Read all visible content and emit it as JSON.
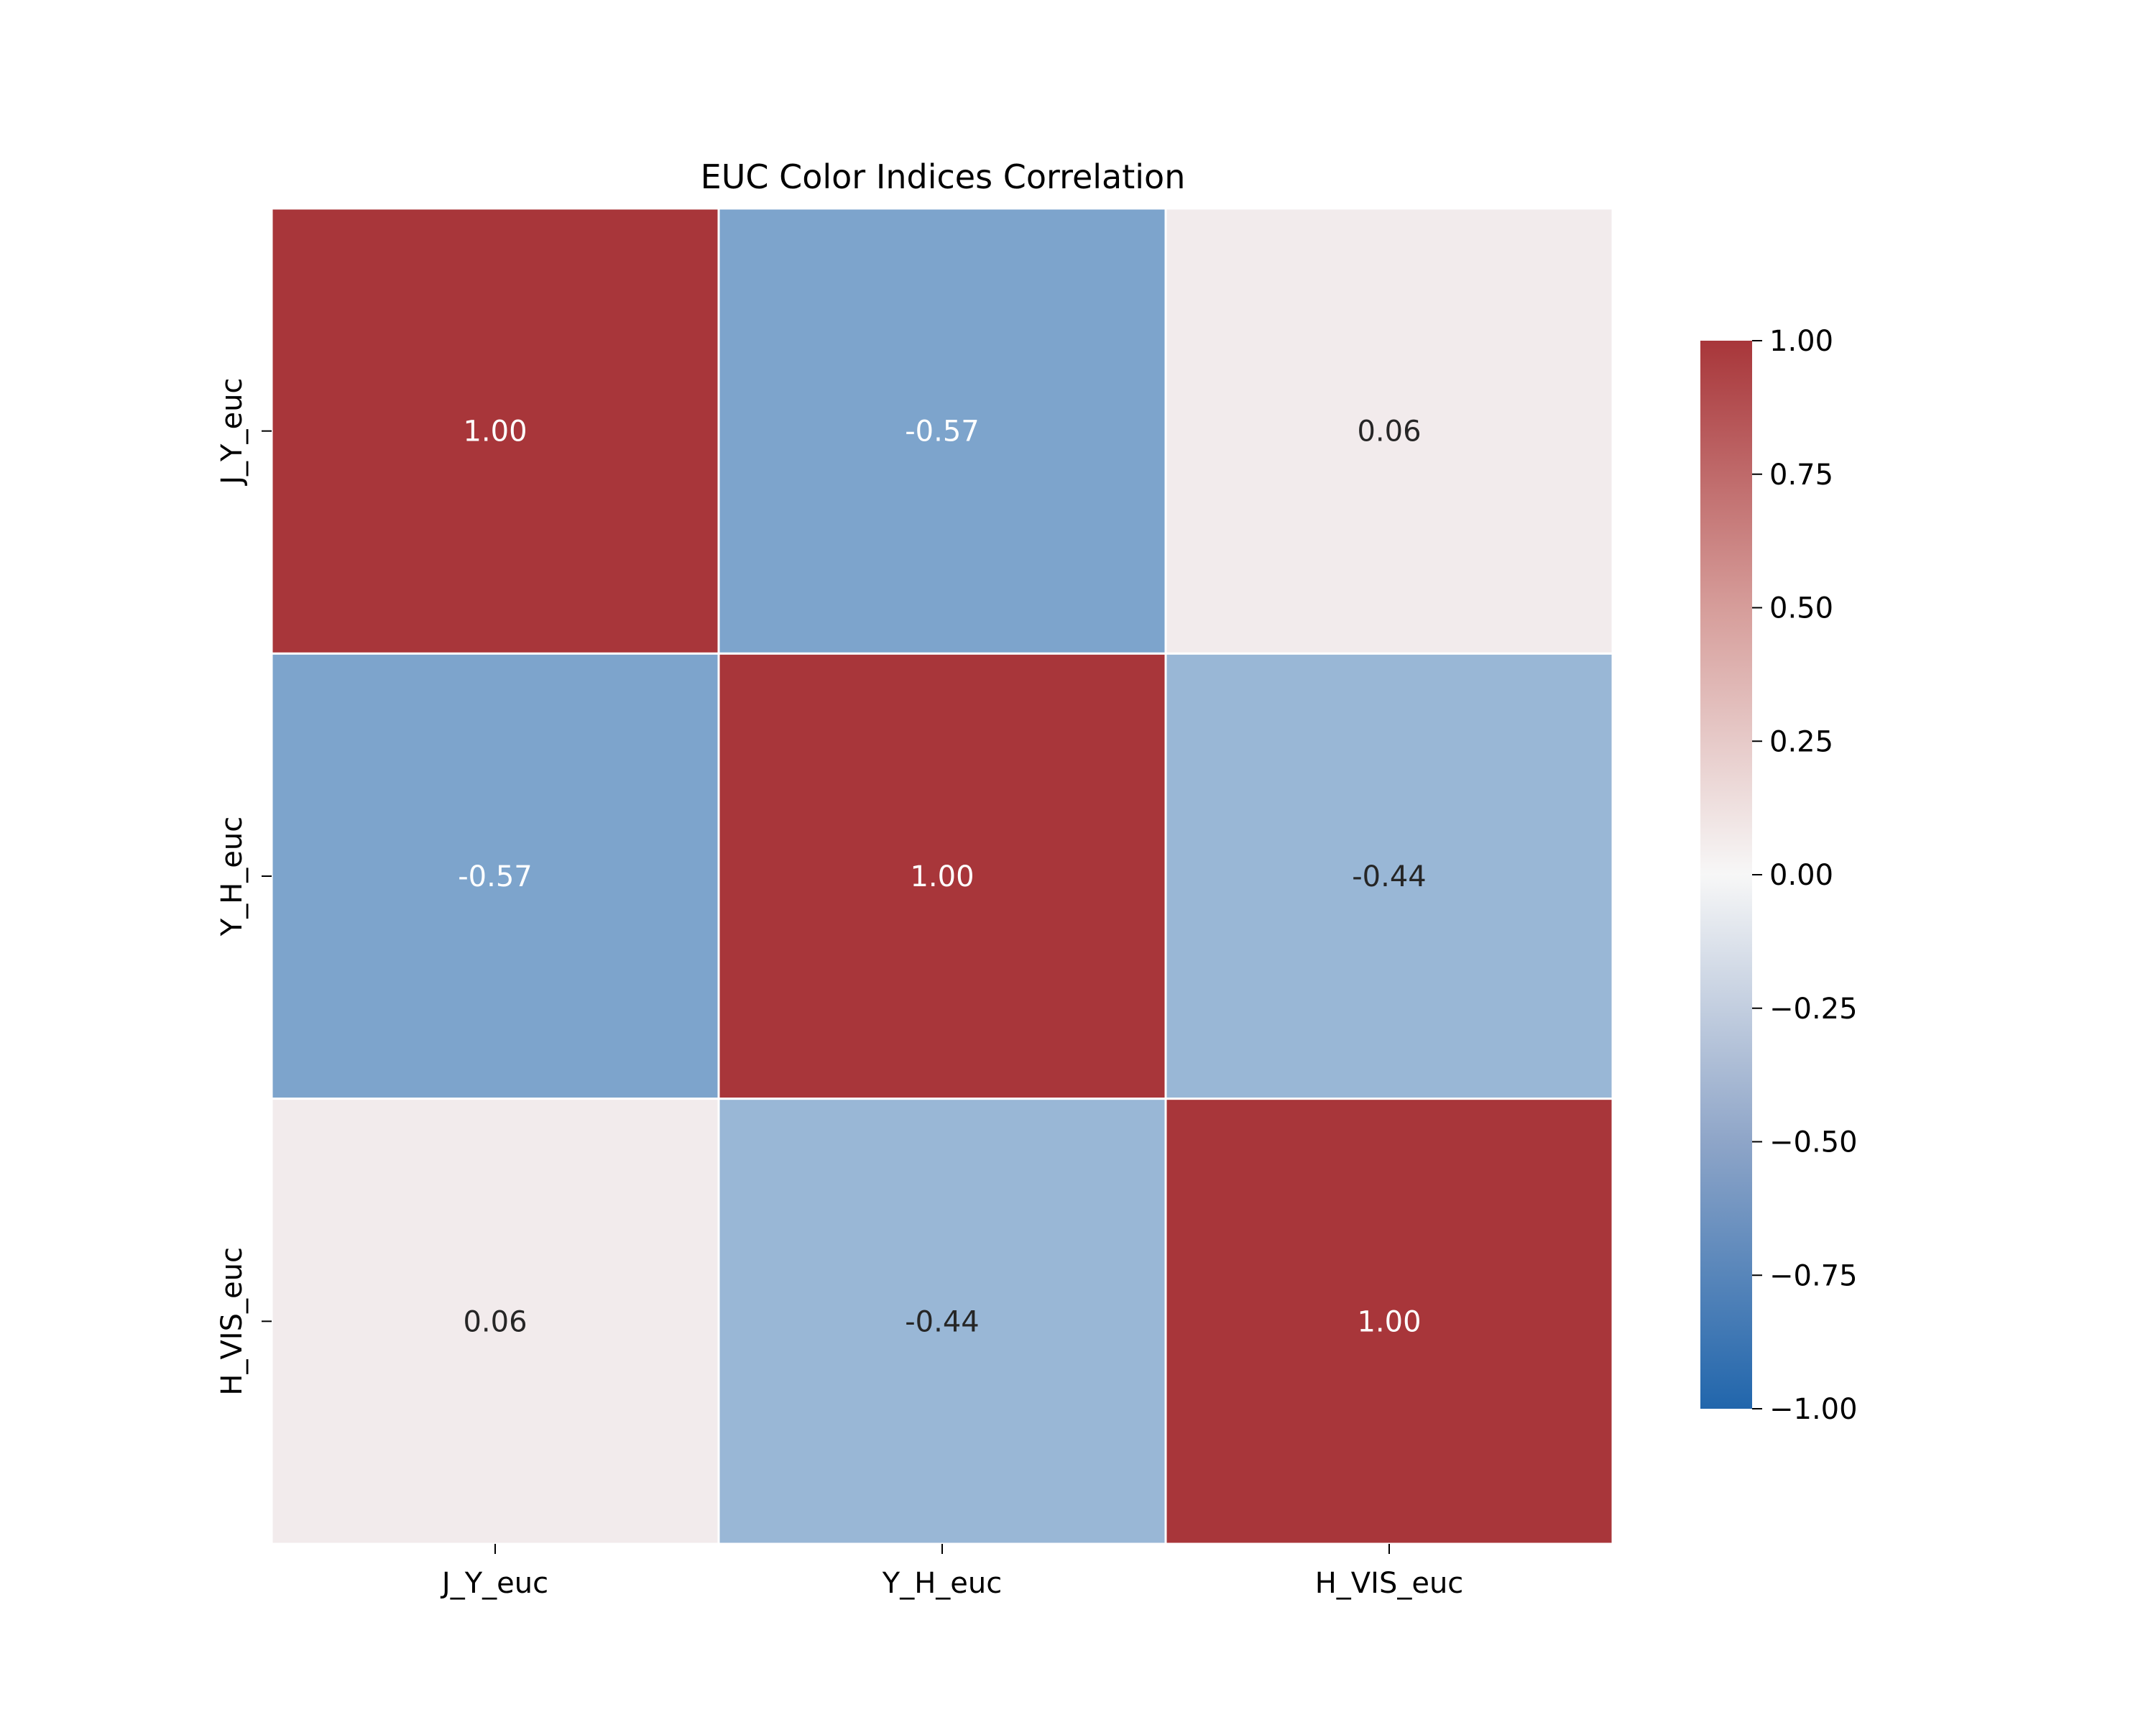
{
  "chart_data": {
    "type": "heatmap",
    "title": "EUC Color Indices Correlation",
    "xlabel": "",
    "ylabel": "",
    "x_categories": [
      "J_Y_euc",
      "Y_H_euc",
      "H_VIS_euc"
    ],
    "y_categories": [
      "J_Y_euc",
      "Y_H_euc",
      "H_VIS_euc"
    ],
    "values": [
      [
        1.0,
        -0.57,
        0.06
      ],
      [
        -0.57,
        1.0,
        -0.44
      ],
      [
        0.06,
        -0.44,
        1.0
      ]
    ],
    "value_labels": [
      [
        "1.00",
        "-0.57",
        "0.06"
      ],
      [
        "-0.57",
        "1.00",
        "-0.44"
      ],
      [
        "0.06",
        "-0.44",
        "1.00"
      ]
    ],
    "colorbar": {
      "range": [
        -1.0,
        1.0
      ],
      "ticks": [
        1.0,
        0.75,
        0.5,
        0.25,
        0.0,
        -0.25,
        -0.5,
        -0.75,
        -1.0
      ],
      "tick_labels": [
        "1.00",
        "0.75",
        "0.50",
        "0.25",
        "0.00",
        "−0.25",
        "−0.50",
        "−0.75",
        "−1.00"
      ],
      "placement": "right"
    },
    "colors": {
      "low": "#2166ac",
      "mid": "#f7f7f7",
      "high": "#a8363a",
      "cell_border": "#ffffff",
      "light_text": "#ffffff",
      "dark_text": "#262626"
    },
    "grid": false
  }
}
